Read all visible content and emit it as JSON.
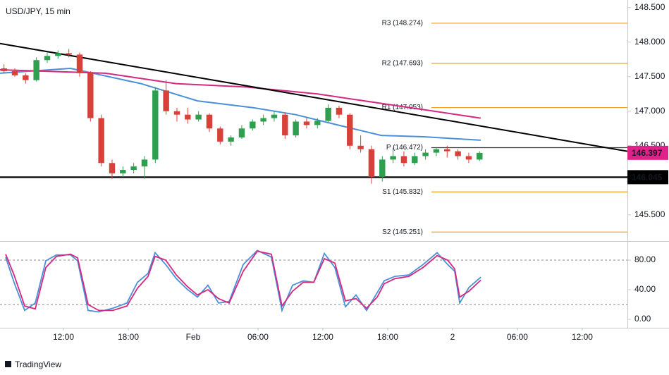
{
  "chart_data": [
    {
      "type": "candlestick",
      "title": "USD/JPY, 15 min",
      "xlim": [
        6.13,
        64.18
      ],
      "ylim": [
        145.12,
        148.61
      ],
      "yticks": [
        {
          "value": 145.5,
          "label": "145.500"
        },
        {
          "value": 146.5,
          "label": "146.500"
        },
        {
          "value": 147,
          "label": "147.000"
        },
        {
          "value": 147.5,
          "label": "147.500"
        },
        {
          "value": 148,
          "label": "148.000"
        },
        {
          "value": 148.5,
          "label": "148.500"
        }
      ],
      "up_color": "#2e9e4f",
      "down_color": "#d8403a",
      "x": [
        6.5,
        7.5,
        8.5,
        9.5,
        10.5,
        11.5,
        12.5,
        13.5,
        14.5,
        15.5,
        16.5,
        17.5,
        18.5,
        19.5,
        20.5,
        21.5,
        22.5,
        23.5,
        24.5,
        25.5,
        26.5,
        27.5,
        28.5,
        29.5,
        30.5,
        31.5,
        32.5,
        33.5,
        34.5,
        35.5,
        36.5,
        37.5,
        38.5,
        39.5,
        40.5,
        41.5,
        42.5,
        43.5,
        44.5,
        45.5,
        46.5,
        47.5,
        48.5,
        49.5,
        50.5
      ],
      "ohlc": [
        [
          147.62,
          147.68,
          147.55,
          147.58
        ],
        [
          147.58,
          147.62,
          147.5,
          147.52
        ],
        [
          147.52,
          147.55,
          147.4,
          147.45
        ],
        [
          147.45,
          147.78,
          147.43,
          147.74
        ],
        [
          147.74,
          147.85,
          147.7,
          147.8
        ],
        [
          147.8,
          147.88,
          147.76,
          147.84
        ],
        [
          147.84,
          147.9,
          147.78,
          147.82
        ],
        [
          147.82,
          147.85,
          147.5,
          147.55
        ],
        [
          147.55,
          147.58,
          146.85,
          146.9
        ],
        [
          146.9,
          146.95,
          146.2,
          146.25
        ],
        [
          146.25,
          146.3,
          146.02,
          146.1
        ],
        [
          146.1,
          146.2,
          146.05,
          146.15
        ],
        [
          146.15,
          146.25,
          146.1,
          146.2
        ],
        [
          146.2,
          146.35,
          146.02,
          146.3
        ],
        [
          146.3,
          147.35,
          146.25,
          147.3
        ],
        [
          147.3,
          147.45,
          146.95,
          147.0
        ],
        [
          147.0,
          147.05,
          146.85,
          146.95
        ],
        [
          146.95,
          147.05,
          146.82,
          146.88
        ],
        [
          146.88,
          147.0,
          146.85,
          146.95
        ],
        [
          146.95,
          146.97,
          146.7,
          146.75
        ],
        [
          146.75,
          146.78,
          146.52,
          146.56
        ],
        [
          146.56,
          146.65,
          146.5,
          146.62
        ],
        [
          146.62,
          146.8,
          146.6,
          146.75
        ],
        [
          146.75,
          146.88,
          146.72,
          146.85
        ],
        [
          146.85,
          146.95,
          146.8,
          146.9
        ],
        [
          146.9,
          147.0,
          146.85,
          146.95
        ],
        [
          146.95,
          146.98,
          146.6,
          146.65
        ],
        [
          146.65,
          146.88,
          146.62,
          146.85
        ],
        [
          146.85,
          146.9,
          146.75,
          146.8
        ],
        [
          146.8,
          146.9,
          146.75,
          146.86
        ],
        [
          146.86,
          147.1,
          146.84,
          147.05
        ],
        [
          147.05,
          147.08,
          146.9,
          146.95
        ],
        [
          146.95,
          146.97,
          146.45,
          146.5
        ],
        [
          146.5,
          146.65,
          146.4,
          146.45
        ],
        [
          146.45,
          146.5,
          145.95,
          146.05
        ],
        [
          146.05,
          146.35,
          145.98,
          146.3
        ],
        [
          146.3,
          146.47,
          146.25,
          146.35
        ],
        [
          146.35,
          146.42,
          146.2,
          146.25
        ],
        [
          146.25,
          146.4,
          146.22,
          146.35
        ],
        [
          146.35,
          146.45,
          146.3,
          146.4
        ],
        [
          146.4,
          146.48,
          146.35,
          146.45
        ],
        [
          146.45,
          146.5,
          146.33,
          146.42
        ],
        [
          146.42,
          146.45,
          146.3,
          146.35
        ],
        [
          146.35,
          146.4,
          146.25,
          146.3
        ],
        [
          146.3,
          146.42,
          146.28,
          146.397
        ]
      ],
      "series": [
        {
          "color": "#4a90d9",
          "x": [
            6.13,
            12.65,
            19.17,
            24.4,
            29.6,
            33.5,
            37.4,
            41.4,
            45.3,
            50.6
          ],
          "values": [
            147.55,
            147.62,
            147.4,
            147.15,
            147.05,
            146.95,
            146.8,
            146.65,
            146.63,
            146.58
          ]
        },
        {
          "color": "#d6287f",
          "x": [
            6.13,
            15.9,
            22.4,
            29.0,
            35.5,
            42.0,
            50.6
          ],
          "values": [
            147.6,
            147.55,
            147.4,
            147.35,
            147.25,
            147.1,
            146.9
          ]
        }
      ],
      "trendline": {
        "x": [
          6.13,
          64.18
        ],
        "values": [
          147.98,
          146.42
        ]
      },
      "support": 146.045,
      "pivots": [
        {
          "label": "R3 (148.274)",
          "value": 148.274,
          "color": "#f5a023"
        },
        {
          "label": "R2 (147.693)",
          "value": 147.693,
          "color": "#f5a023"
        },
        {
          "label": "R1 (147.053)",
          "value": 147.053,
          "color": "#f5a023"
        },
        {
          "label": "P (146.472)",
          "value": 146.472,
          "color": "#333333"
        },
        {
          "label": "S1 (145.832)",
          "value": 145.832,
          "color": "#f5a023"
        },
        {
          "label": "S2 (145.251)",
          "value": 145.251,
          "color": "#f5a023"
        }
      ],
      "price_labels": [
        {
          "label": "146.397",
          "value": 146.397,
          "color": "#e0218a"
        },
        {
          "label": "146.045",
          "value": 146.045,
          "color": "#000000"
        }
      ]
    },
    {
      "type": "line",
      "xlim": [
        6.13,
        64.18
      ],
      "ylim": [
        -11.4,
        105.7
      ],
      "xticks": [
        {
          "value": 12,
          "label": "12:00"
        },
        {
          "value": 18,
          "label": "18:00"
        },
        {
          "value": 24,
          "label": "Feb"
        },
        {
          "value": 30,
          "label": "06:00"
        },
        {
          "value": 36,
          "label": "12:00"
        },
        {
          "value": 42,
          "label": "18:00"
        },
        {
          "value": 48,
          "label": "2"
        },
        {
          "value": 54,
          "label": "06:00"
        },
        {
          "value": 60,
          "label": "12:00"
        }
      ],
      "yticks": [
        {
          "value": 0,
          "label": "0.00"
        },
        {
          "value": 40,
          "label": "40.00"
        },
        {
          "value": 80,
          "label": "80.00"
        }
      ],
      "levels": [
        80,
        20
      ],
      "x": [
        6.65,
        7.43,
        8.41,
        9.39,
        10.37,
        11.35,
        12.65,
        13.31,
        14.28,
        15.26,
        16.57,
        17.87,
        18.85,
        19.83,
        20.48,
        21.46,
        22.44,
        23.42,
        24.39,
        25.37,
        26.35,
        27.33,
        28.63,
        29.94,
        31.24,
        32.22,
        33.2,
        34.18,
        35.16,
        36.14,
        37.11,
        38.09,
        39.07,
        40.05,
        41.03,
        41.68,
        42.66,
        43.96,
        45.27,
        46.57,
        47.55,
        48.2,
        48.66,
        49.51,
        50.62
      ],
      "series": [
        {
          "color": "#4a90d9",
          "values": [
            84,
            50,
            12,
            22,
            79,
            87,
            87,
            79,
            12,
            10,
            15,
            22,
            50,
            62,
            90,
            74,
            55,
            41,
            30,
            46,
            22,
            24,
            74,
            93,
            84,
            12,
            46,
            52,
            50,
            89,
            70,
            17,
            33,
            12,
            36,
            52,
            58,
            60,
            74,
            90,
            74,
            65,
            22,
            43,
            57
          ]
        },
        {
          "color": "#d6287f",
          "values": [
            88,
            60,
            18,
            14,
            70,
            85,
            88,
            83,
            20,
            12,
            12,
            18,
            42,
            58,
            85,
            80,
            60,
            45,
            33,
            40,
            28,
            22,
            65,
            92,
            88,
            18,
            38,
            50,
            50,
            82,
            76,
            25,
            28,
            15,
            30,
            48,
            55,
            58,
            70,
            86,
            80,
            68,
            30,
            38,
            53
          ]
        }
      ]
    }
  ],
  "footer": "TradingView"
}
